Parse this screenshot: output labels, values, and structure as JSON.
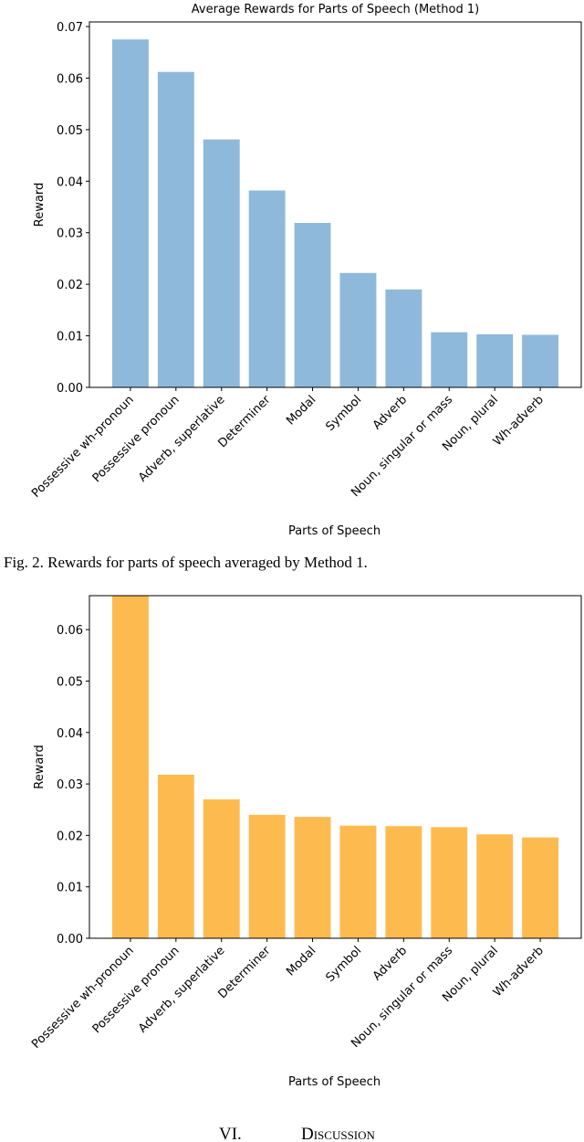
{
  "chart_data": [
    {
      "type": "bar",
      "title": "Average Rewards for Parts of Speech (Method 1)",
      "xlabel": "Parts of Speech",
      "ylabel": "Reward",
      "categories": [
        "Possessive wh-pronoun",
        "Possessive pronoun",
        "Adverb, superlative",
        "Determiner",
        "Modal",
        "Symbol",
        "Adverb",
        "Noun, singular or mass",
        "Noun, plural",
        "Wh-adverb"
      ],
      "values": [
        0.0675,
        0.0612,
        0.0481,
        0.0382,
        0.0319,
        0.0222,
        0.019,
        0.0107,
        0.0103,
        0.0102
      ],
      "color": "#8fb9da",
      "ylim": [
        0,
        0.0709
      ],
      "yticks": [
        {
          "value": 0,
          "label": "0.00"
        },
        {
          "value": 0.01,
          "label": "0.01"
        },
        {
          "value": 0.02,
          "label": "0.02"
        },
        {
          "value": 0.03,
          "label": "0.03"
        },
        {
          "value": 0.04,
          "label": "0.04"
        },
        {
          "value": 0.05,
          "label": "0.05"
        },
        {
          "value": 0.06,
          "label": "0.06"
        },
        {
          "value": 0.07,
          "label": "0.07"
        }
      ]
    },
    {
      "type": "bar",
      "xlabel": "Parts of Speech",
      "ylabel": "Reward",
      "categories": [
        "Possessive wh-pronoun",
        "Possessive pronoun",
        "Adverb, superlative",
        "Determiner",
        "Modal",
        "Symbol",
        "Adverb",
        "Noun, singular or mass",
        "Noun, plural",
        "Wh-adverb"
      ],
      "values": [
        0.0666,
        0.0318,
        0.027,
        0.024,
        0.0236,
        0.0219,
        0.0218,
        0.0216,
        0.0202,
        0.0196
      ],
      "color": "#fdbb4f",
      "ylim": [
        0,
        0.0666
      ],
      "yticks": [
        {
          "value": 0,
          "label": "0.00"
        },
        {
          "value": 0.01,
          "label": "0.01"
        },
        {
          "value": 0.02,
          "label": "0.02"
        },
        {
          "value": 0.03,
          "label": "0.03"
        },
        {
          "value": 0.04,
          "label": "0.04"
        },
        {
          "value": 0.05,
          "label": "0.05"
        },
        {
          "value": 0.06,
          "label": "0.06"
        }
      ]
    }
  ],
  "caption": "Fig. 2. Rewards for parts of speech averaged by Method 1.",
  "section_number": "VI.",
  "section_title": "Discussion"
}
